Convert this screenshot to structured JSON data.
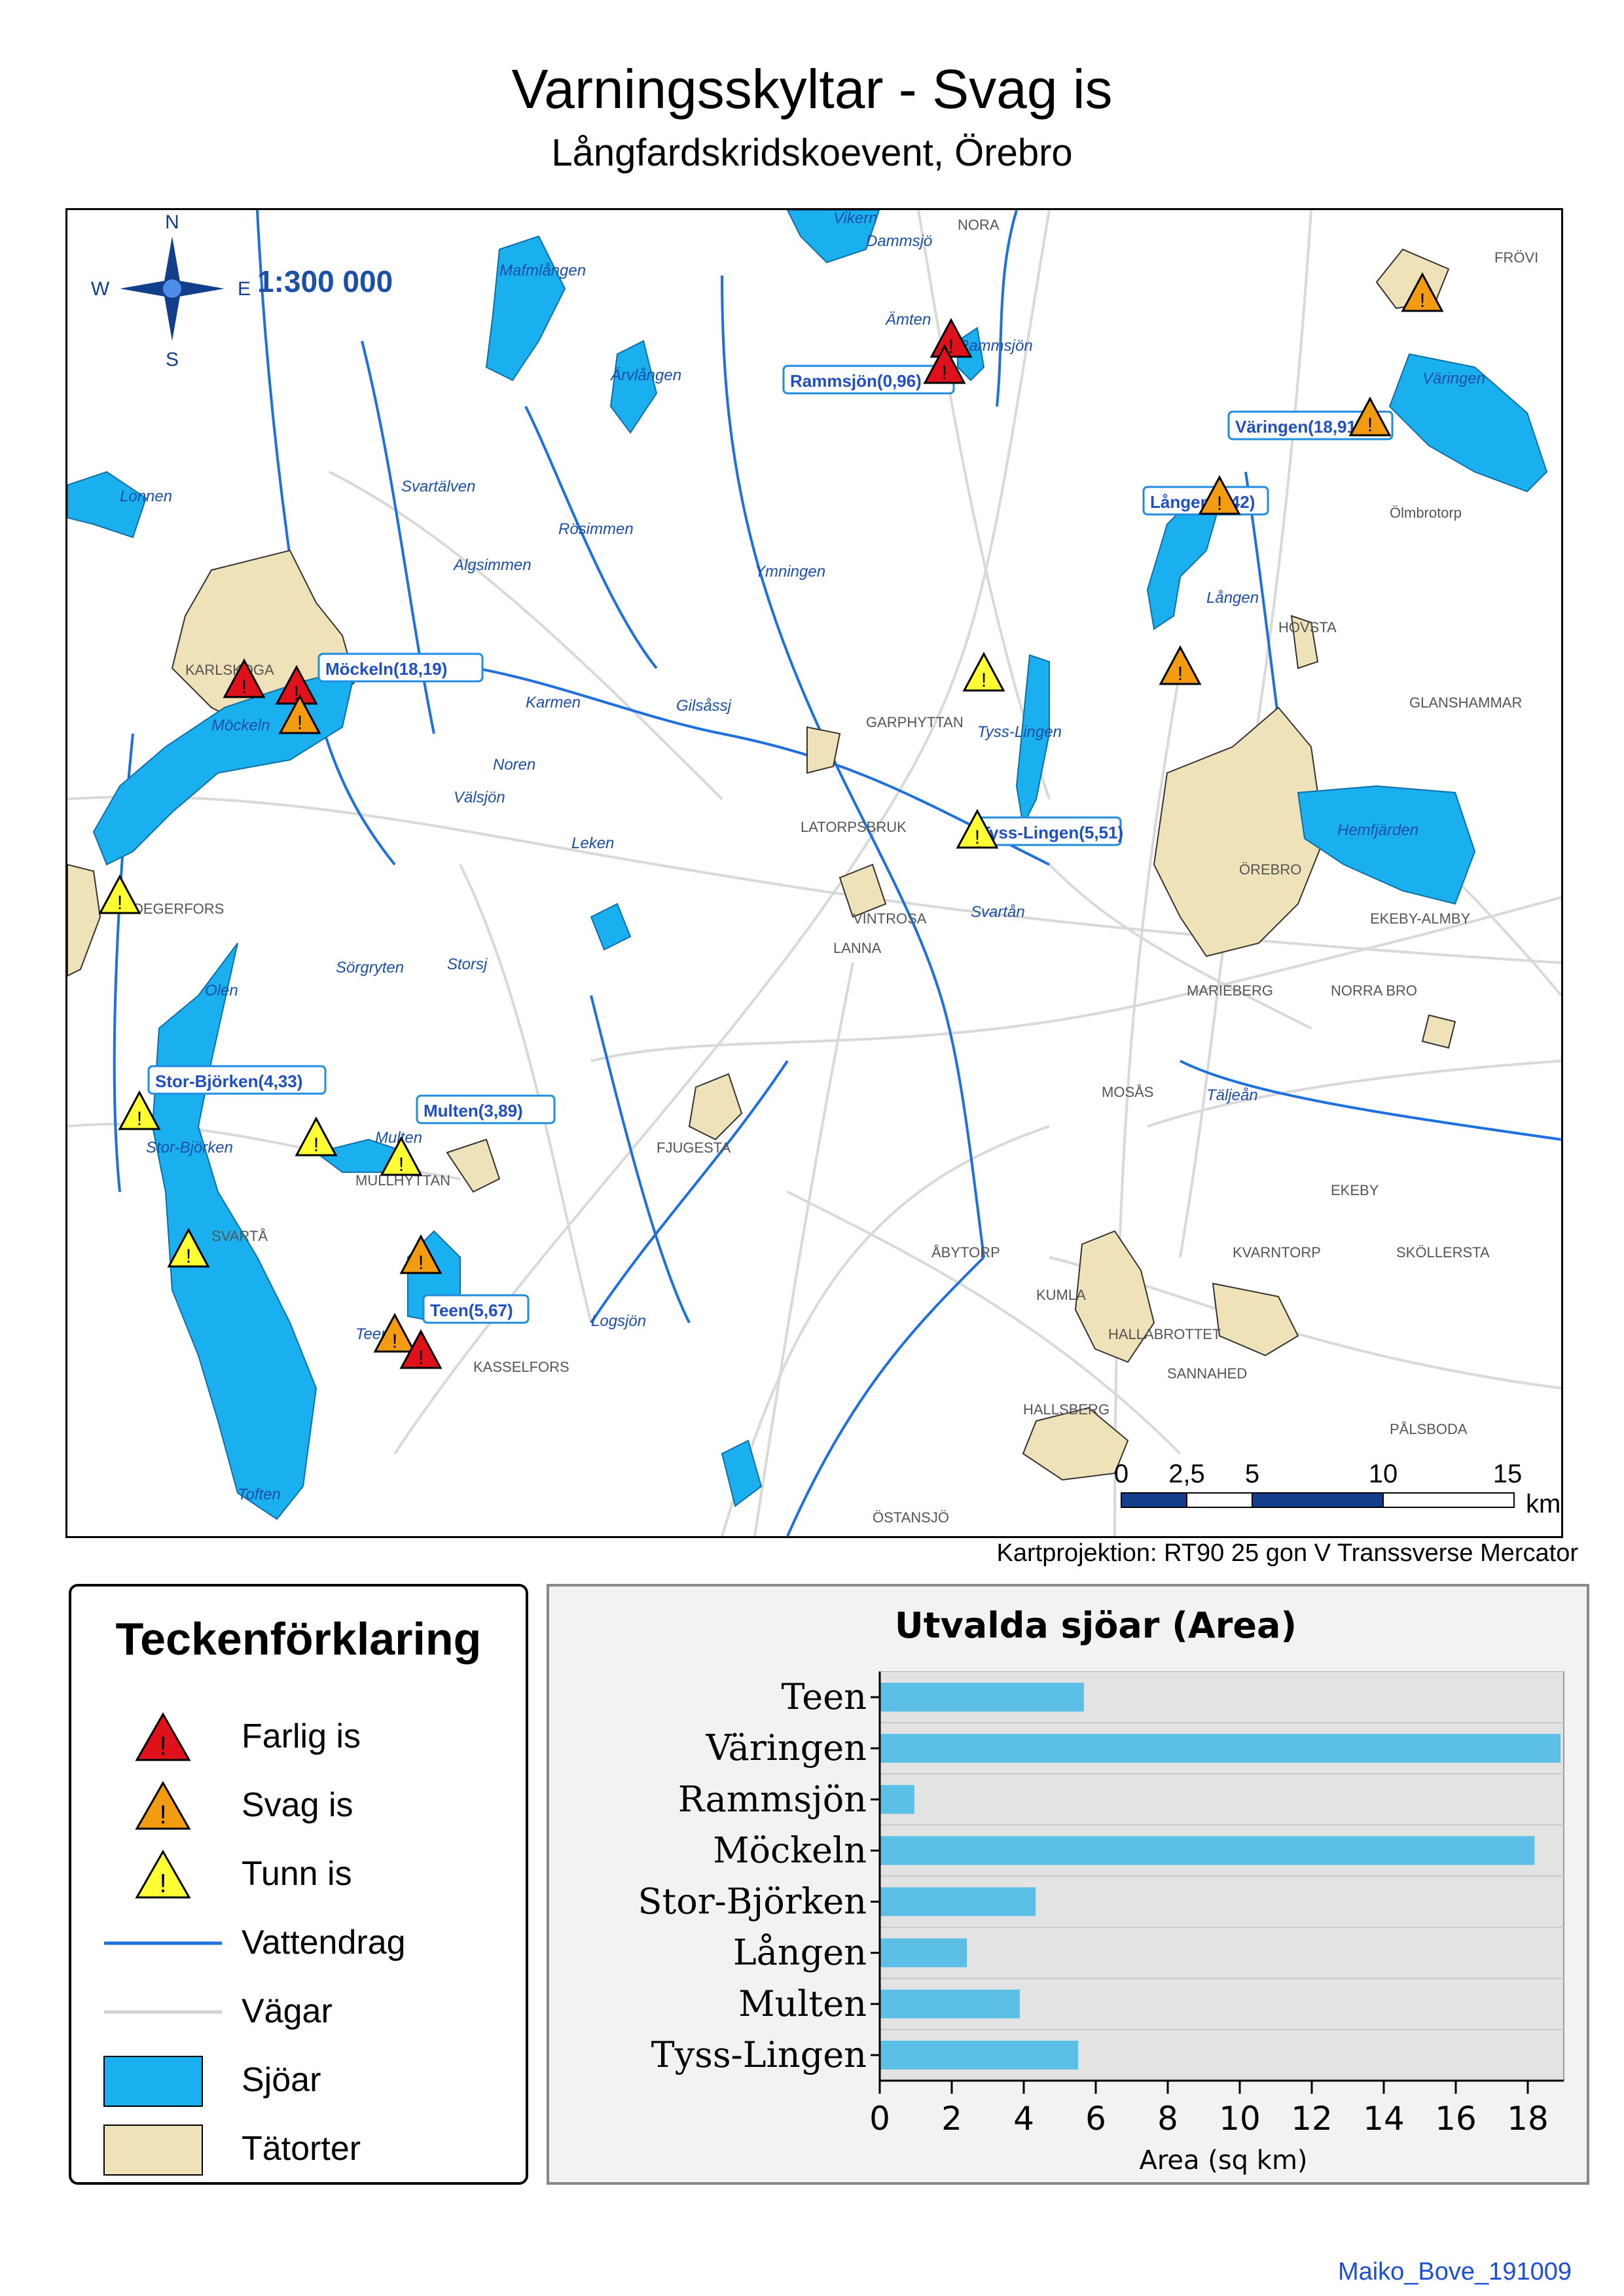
{
  "title": "Varningsskyltar - Svag is",
  "subtitle": "Långfardskridskoevent, Örebro",
  "scale_text": "1:300 000",
  "compass": {
    "n": "N",
    "s": "S",
    "e": "E",
    "w": "W"
  },
  "projection": "Kartprojektion: RT90 25 gon V Transsverse Mercator",
  "credit": "Maiko_Bove_191009",
  "scalebar": {
    "ticks": [
      "0",
      "2,5",
      "5",
      "10",
      "15"
    ],
    "unit": "km"
  },
  "colors": {
    "water": "#1ab0f0",
    "river": "#1e6fe0",
    "town": "#efe2b8",
    "farlig": "#e0111b",
    "svag": "#f39c11",
    "tunn": "#ffff33",
    "label_blue": "#1f4fc4",
    "bar": "#5bbfe6"
  },
  "place_labels": [
    "Vikern",
    "Dammsjö",
    "NORA",
    "FRÖVI",
    "Mafmlången",
    "Ämten",
    "Rammsjön",
    "Ärvlången",
    "Väringen",
    "Lonnen",
    "Svartälven",
    "Rösimmen",
    "Ölmbrotorp",
    "Algsimmen",
    "Ymningen",
    "Lången",
    "HOVSTA",
    "KARLSKOGA",
    "Möckeln",
    "Karmen",
    "Gilsåssj",
    "GARPHYTTAN",
    "GLANSHAMMAR",
    "Tyss-Lingen",
    "Noren",
    "Välsjön",
    "Leken",
    "LATORPSBRUK",
    "Hemfjärden",
    "ÖREBRO",
    "DEGERFORS",
    "VINTROSA",
    "Svartån",
    "EKEBY-ALMBY",
    "LANNA",
    "Sörgryten",
    "Storsj",
    "Olen",
    "MARIEBERG",
    "NORRA BRO",
    "Stor-Björken",
    "MOSÅS",
    "Täljeån",
    "Multen",
    "FJUGESTA",
    "MULLHYTTAN",
    "EKEBY",
    "SVARTÅ",
    "ÅBYTORP",
    "KVARNTORP",
    "SKÖLLERSTA",
    "KUMLA",
    "Teen",
    "HALLABROTTET",
    "Logsjön",
    "KASSELFORS",
    "SANNAHED",
    "HALLSBERG",
    "PÅLSBODA",
    "Toften",
    "ÖSTANSJÖ"
  ],
  "lake_labels": [
    "Rammsjön(0,96)",
    "Väringen(18,91)",
    "Lången(2,42)",
    "Möckeln(18,19)",
    "Tyss-Lingen(5,51)",
    "Stor-Björken(4,33)",
    "Multen(3,89)",
    "Teen(5,67)"
  ],
  "legend": {
    "title": "Teckenförklaring",
    "items": [
      "Farlig is",
      "Svag is",
      "Tunn is",
      "Vattendrag",
      "Vägar",
      "Sjöar",
      "Tätorter"
    ]
  },
  "chart_data": {
    "type": "bar",
    "orientation": "horizontal",
    "title": "Utvalda sjöar (Area)",
    "xlabel": "Area (sq km)",
    "ylabel": "",
    "categories": [
      "Teen",
      "Väringen",
      "Rammsjön",
      "Möckeln",
      "Stor-Björken",
      "Lången",
      "Multen",
      "Tyss-Lingen"
    ],
    "values": [
      5.67,
      18.91,
      0.96,
      18.19,
      4.33,
      2.42,
      3.89,
      5.51
    ],
    "xlim": [
      0,
      19
    ],
    "xticks": [
      "0",
      "2",
      "4",
      "6",
      "8",
      "10",
      "12",
      "14",
      "16",
      "18"
    ],
    "grid": true
  }
}
